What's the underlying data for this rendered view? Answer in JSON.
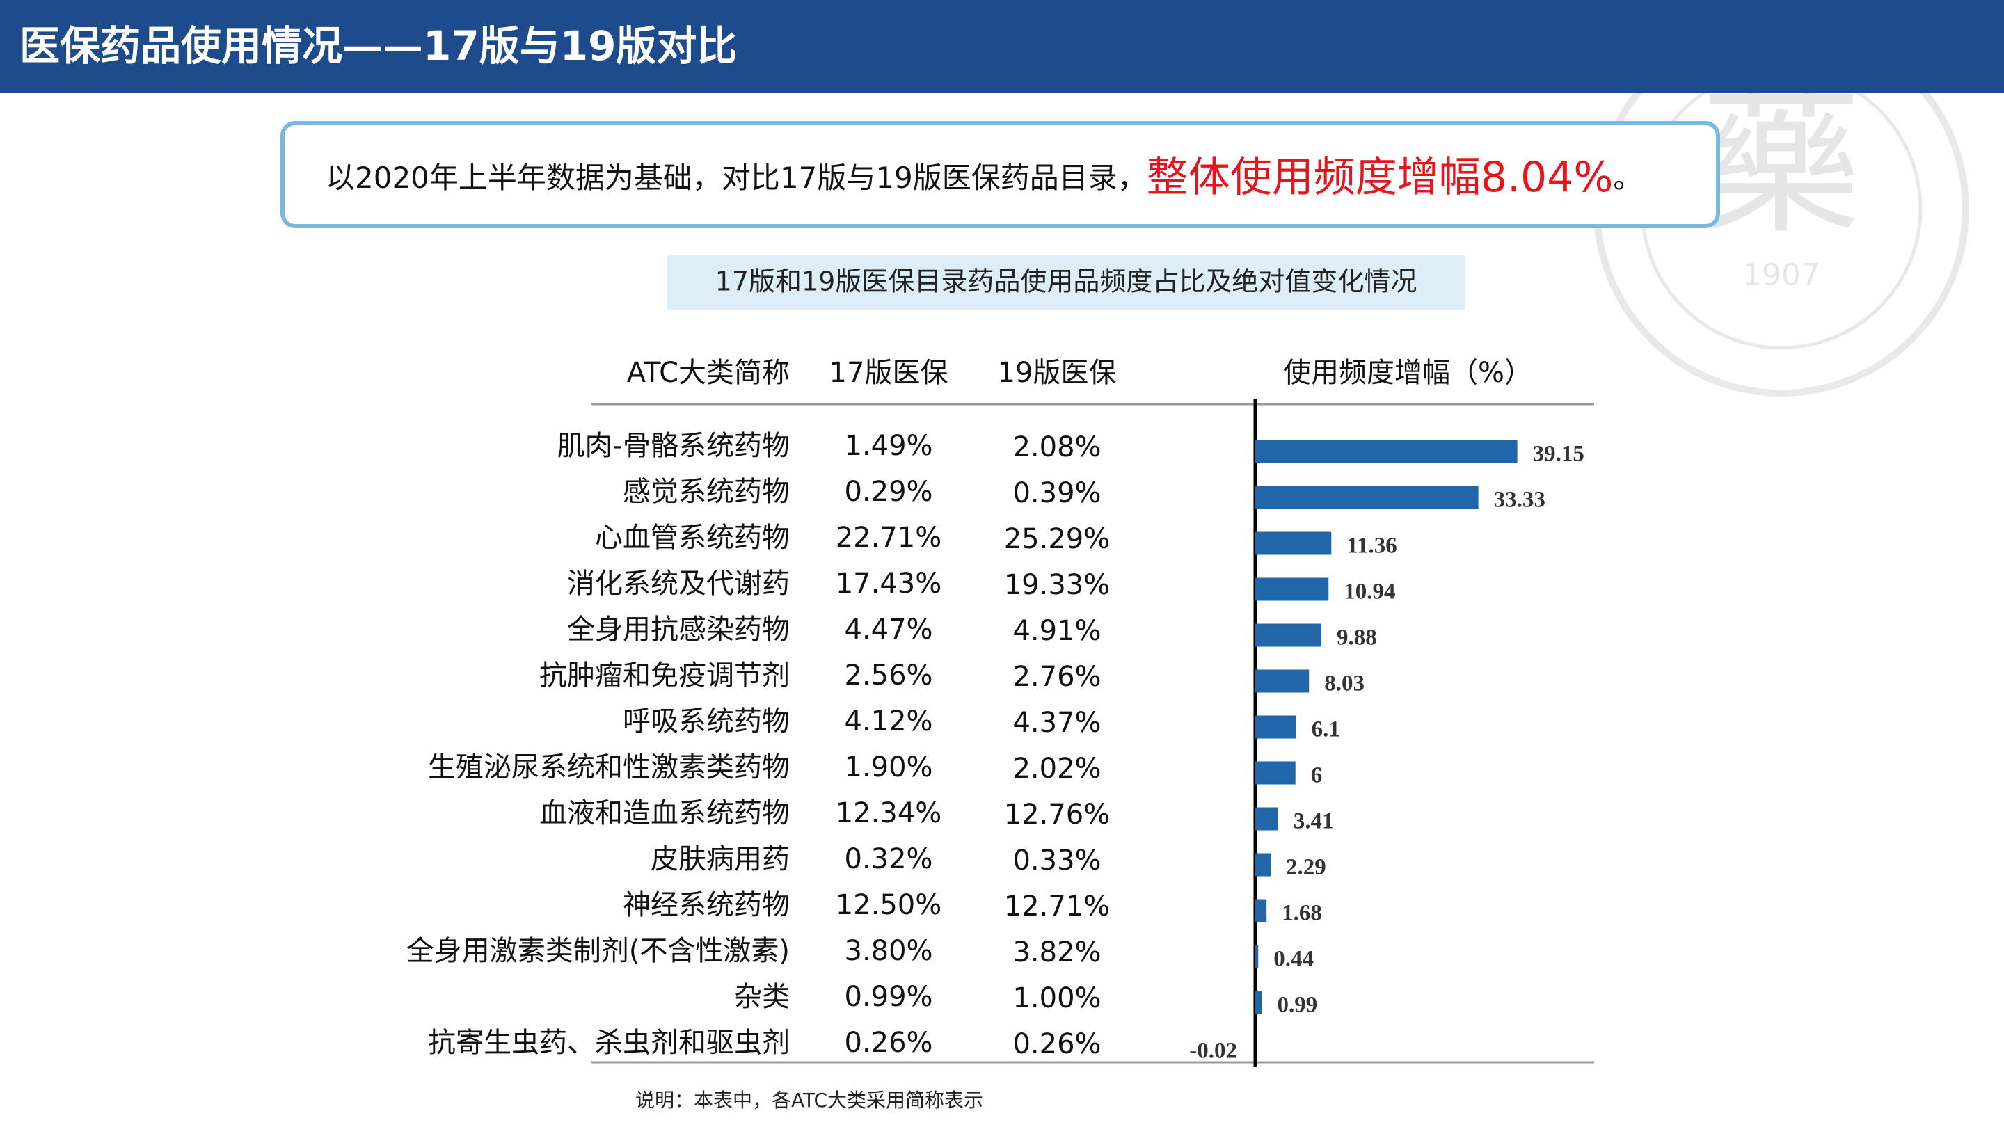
{
  "header": {
    "title": "医保药品使用情况——17版与19版对比"
  },
  "callout": {
    "text": "以2020年上半年数据为基础，对比17版与19版医保药品目录，",
    "highlight": "整体使用频度增幅8.04%",
    "end": "。"
  },
  "subtitle": "17版和19版医保目录药品使用品频度占比及绝对值变化情况",
  "table": {
    "headers": [
      "ATC大类简称",
      "17版医保",
      "19版医保"
    ],
    "rows": [
      [
        "1.49%",
        "2.08%"
      ],
      [
        "0.29%",
        "0.39%"
      ],
      [
        "22.71%",
        "25.29%"
      ],
      [
        "17.43%",
        "19.33%"
      ],
      [
        "4.47%",
        "4.91%"
      ],
      [
        "2.56%",
        "2.76%"
      ],
      [
        "4.12%",
        "4.37%"
      ],
      [
        "1.90%",
        "2.02%"
      ],
      [
        "12.34%",
        "12.76%"
      ],
      [
        "0.32%",
        "0.33%"
      ],
      [
        "12.50%",
        "12.71%"
      ],
      [
        "3.80%",
        "3.82%"
      ],
      [
        "0.99%",
        "1.00%"
      ],
      [
        "0.26%",
        "0.26%"
      ]
    ]
  },
  "chart_data": {
    "type": "bar",
    "orientation": "horizontal",
    "title": "使用频度增幅（%）",
    "color": "#2166a8",
    "categories": [
      "肌肉-骨骼系统药物",
      "感觉系统药物",
      "心血管系统药物",
      "消化系统及代谢药",
      "全身用抗感染药物",
      "抗肿瘤和免疫调节剂",
      "呼吸系统药物",
      "生殖泌尿系统和性激素类药物",
      "血液和造血系统药物",
      "皮肤病用药",
      "神经系统药物",
      "全身用激素类制剂(不含性激素)",
      "杂类",
      "抗寄生虫药、杀虫剂和驱虫剂"
    ],
    "values": [
      39.15,
      33.33,
      11.36,
      10.94,
      9.88,
      8.03,
      6.1,
      6,
      3.41,
      2.29,
      1.68,
      0.44,
      0.99,
      -0.02
    ]
  },
  "note": "说明：本表中，各ATC大类采用简称表示",
  "watermark": {
    "glyph": "藥",
    "year": "1907"
  }
}
